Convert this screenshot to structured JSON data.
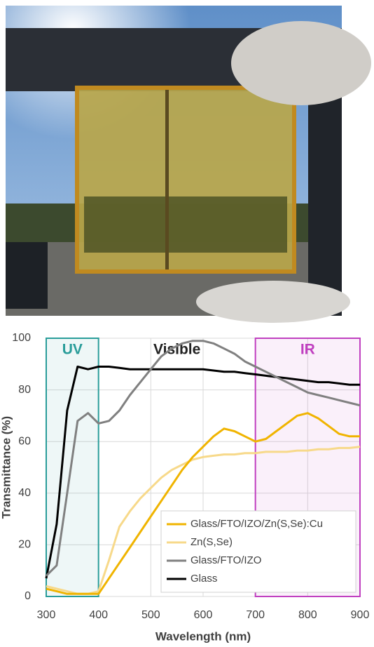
{
  "chart_data": {
    "type": "line",
    "x_label": "Wavelength (nm)",
    "y_label": "Transmittance (%)",
    "xlim": [
      300,
      900
    ],
    "xticks": [
      300,
      400,
      500,
      600,
      700,
      800,
      900
    ],
    "ylim": [
      0,
      100
    ],
    "yticks": [
      0,
      20,
      40,
      60,
      80,
      100
    ],
    "grid": true,
    "regions": [
      {
        "label": "UV",
        "xlim": [
          300,
          400
        ],
        "color": "#2a9d9a"
      },
      {
        "label": "IR",
        "xlim": [
          700,
          900
        ],
        "color": "#c040c0"
      }
    ],
    "annotations": [
      "Visible"
    ],
    "legend": "lower right",
    "x": [
      300,
      320,
      340,
      360,
      380,
      400,
      420,
      440,
      460,
      480,
      500,
      520,
      540,
      560,
      580,
      600,
      620,
      640,
      660,
      680,
      700,
      720,
      740,
      760,
      780,
      800,
      820,
      840,
      860,
      880,
      900
    ],
    "series": [
      {
        "name": "Glass/FTO/IZO/Zn(S,Se):Cu",
        "color": "#f0b400",
        "values": [
          3,
          2,
          1,
          1,
          1,
          1,
          7,
          13,
          19,
          25,
          31,
          37,
          43,
          49,
          54,
          58,
          62,
          65,
          64,
          62,
          60,
          61,
          64,
          67,
          70,
          71,
          69,
          66,
          63,
          62,
          62
        ]
      },
      {
        "name": "Zn(S,Se)",
        "color": "#f7d98a",
        "values": [
          4,
          3,
          2,
          1,
          1,
          2,
          14,
          27,
          33,
          38,
          42,
          46,
          49,
          51,
          53,
          54,
          54.5,
          55,
          55,
          55.5,
          55.5,
          56,
          56,
          56,
          56.5,
          56.5,
          57,
          57,
          57.5,
          57.5,
          58
        ]
      },
      {
        "name": "Glass/FTO/IZO",
        "color": "#808080",
        "values": [
          8,
          12,
          40,
          68,
          71,
          67,
          68,
          72,
          78,
          83,
          88,
          93,
          96,
          98,
          99,
          99,
          98,
          96,
          94,
          91,
          89,
          87,
          85,
          83,
          81,
          79,
          78,
          77,
          76,
          75,
          74
        ]
      },
      {
        "name": "Glass",
        "color": "#000000",
        "values": [
          7,
          28,
          72,
          89,
          88,
          89,
          89,
          88.5,
          88,
          88,
          88,
          88,
          88,
          88,
          88,
          88,
          87.5,
          87,
          87,
          86.5,
          86,
          85.5,
          85,
          84.5,
          84,
          83.5,
          83,
          83,
          82.5,
          82,
          82
        ]
      }
    ]
  }
}
